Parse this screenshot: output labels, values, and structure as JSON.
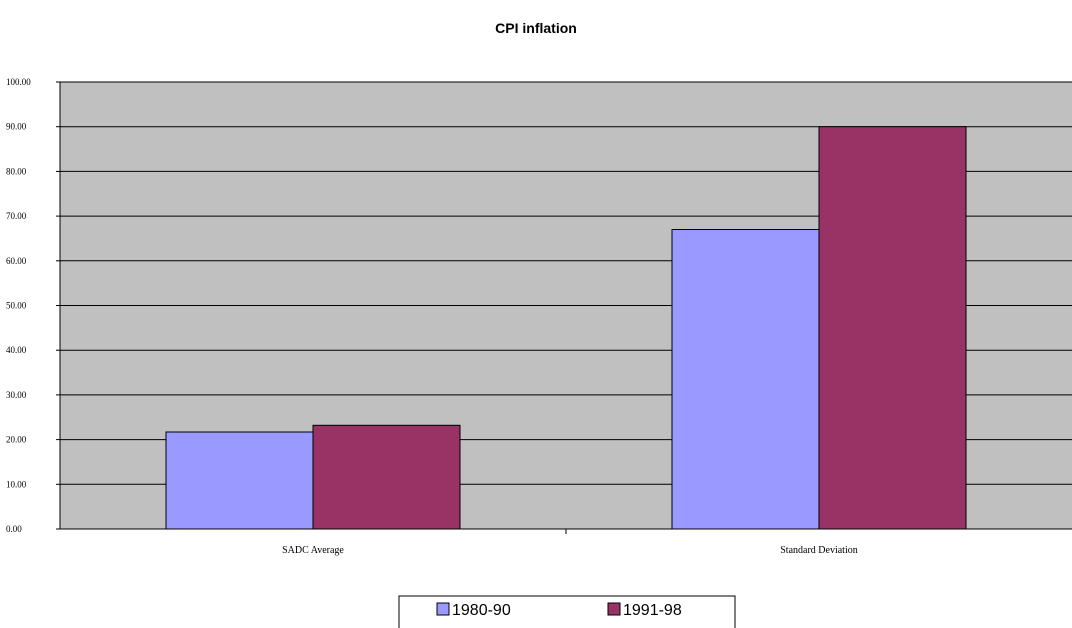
{
  "chart_data": {
    "type": "bar",
    "title": "CPI inflation",
    "categories": [
      "SADC Average",
      "Standard Deviation"
    ],
    "series": [
      {
        "name": "1980-90",
        "color": "#9999ff",
        "values": [
          21.7,
          67.0
        ]
      },
      {
        "name": "1991-98",
        "color": "#993366",
        "values": [
          23.2,
          90.0
        ]
      }
    ],
    "ylim": [
      0,
      100
    ],
    "yticks": [
      "0.00",
      "10.00",
      "20.00",
      "30.00",
      "40.00",
      "50.00",
      "60.00",
      "70.00",
      "80.00",
      "90.00",
      "100.00"
    ],
    "grid": true,
    "plot_background": "#c0c0c0",
    "legend_position": "bottom"
  }
}
